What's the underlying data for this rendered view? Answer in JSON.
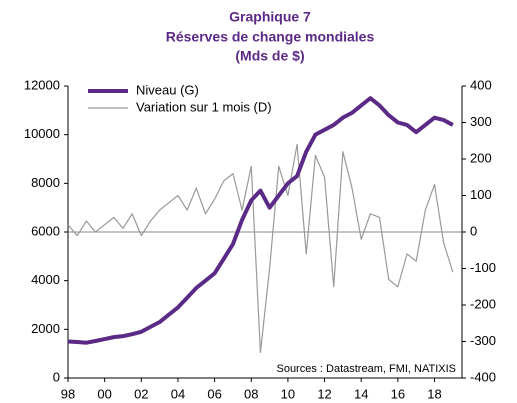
{
  "chart_data": {
    "type": "line",
    "title": [
      "Graphique 7",
      "Réserves de change mondiales",
      "(Mds de $)"
    ],
    "annotation": "Sources : Datastream, FMI, NATIXIS",
    "legend": "upper left",
    "x": [
      1998,
      1998.5,
      1999,
      1999.5,
      2000,
      2000.5,
      2001,
      2001.5,
      2002,
      2002.5,
      2003,
      2003.5,
      2004,
      2004.5,
      2005,
      2005.5,
      2006,
      2006.5,
      2007,
      2007.5,
      2008,
      2008.5,
      2009,
      2009.5,
      2010,
      2010.5,
      2011,
      2011.5,
      2012,
      2012.5,
      2013,
      2013.5,
      2014,
      2014.5,
      2015,
      2015.5,
      2016,
      2016.5,
      2017,
      2017.5,
      2018,
      2018.5,
      2019
    ],
    "series": [
      {
        "name": "Niveau (G)",
        "color": "#5b2a86",
        "axis": "y",
        "values": [
          1500,
          1480,
          1450,
          1520,
          1600,
          1680,
          1720,
          1800,
          1900,
          2100,
          2300,
          2600,
          2900,
          3300,
          3700,
          4000,
          4300,
          4900,
          5500,
          6500,
          7300,
          7700,
          7000,
          7500,
          8000,
          8300,
          9300,
          10000,
          10200,
          10400,
          10700,
          10900,
          11200,
          11500,
          11200,
          10800,
          10500,
          10400,
          10100,
          10400,
          10700,
          10600,
          10400
        ]
      },
      {
        "name": "Variation sur 1 mois (D)",
        "color": "#999999",
        "axis": "y2",
        "values": [
          20,
          -10,
          30,
          0,
          20,
          40,
          10,
          50,
          -10,
          30,
          60,
          80,
          100,
          60,
          120,
          50,
          90,
          140,
          160,
          60,
          180,
          -330,
          -100,
          180,
          100,
          240,
          -60,
          210,
          150,
          -150,
          220,
          120,
          -20,
          50,
          40,
          -130,
          -150,
          -60,
          -80,
          60,
          130,
          -30,
          -110
        ]
      }
    ],
    "xlim": [
      1998,
      2019.5
    ],
    "xticks": [
      {
        "value": 1998,
        "label": "98"
      },
      {
        "value": 2000,
        "label": "00"
      },
      {
        "value": 2002,
        "label": "02"
      },
      {
        "value": 2004,
        "label": "04"
      },
      {
        "value": 2006,
        "label": "06"
      },
      {
        "value": 2008,
        "label": "08"
      },
      {
        "value": 2010,
        "label": "10"
      },
      {
        "value": 2012,
        "label": "12"
      },
      {
        "value": 2014,
        "label": "14"
      },
      {
        "value": 2016,
        "label": "16"
      },
      {
        "value": 2018,
        "label": "18"
      }
    ],
    "ylim": [
      0,
      12000
    ],
    "yticks": [
      0,
      2000,
      4000,
      6000,
      8000,
      10000,
      12000
    ],
    "y2lim": [
      -400,
      400
    ],
    "y2ticks": [
      -400,
      -300,
      -200,
      -100,
      0,
      100,
      200,
      300,
      400
    ]
  }
}
